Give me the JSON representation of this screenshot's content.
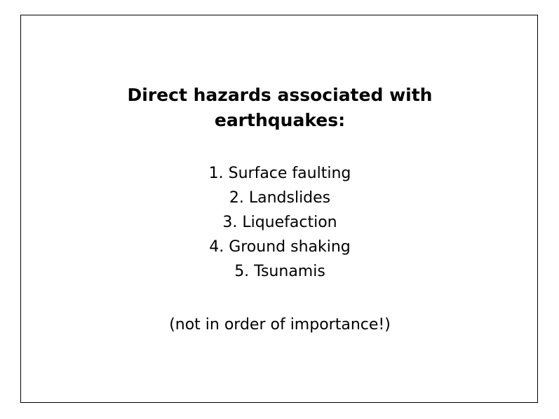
{
  "slide": {
    "title_line1": "Direct hazards associated with",
    "title_line2": "earthquakes:",
    "hazards": [
      "1. Surface faulting",
      "2. Landslides",
      "3. Liquefaction",
      "4. Ground shaking",
      "5. Tsunamis"
    ],
    "note": "(not in order of importance!)",
    "colors": {
      "background": "#ffffff",
      "text": "#000000",
      "border": "#000000"
    }
  }
}
